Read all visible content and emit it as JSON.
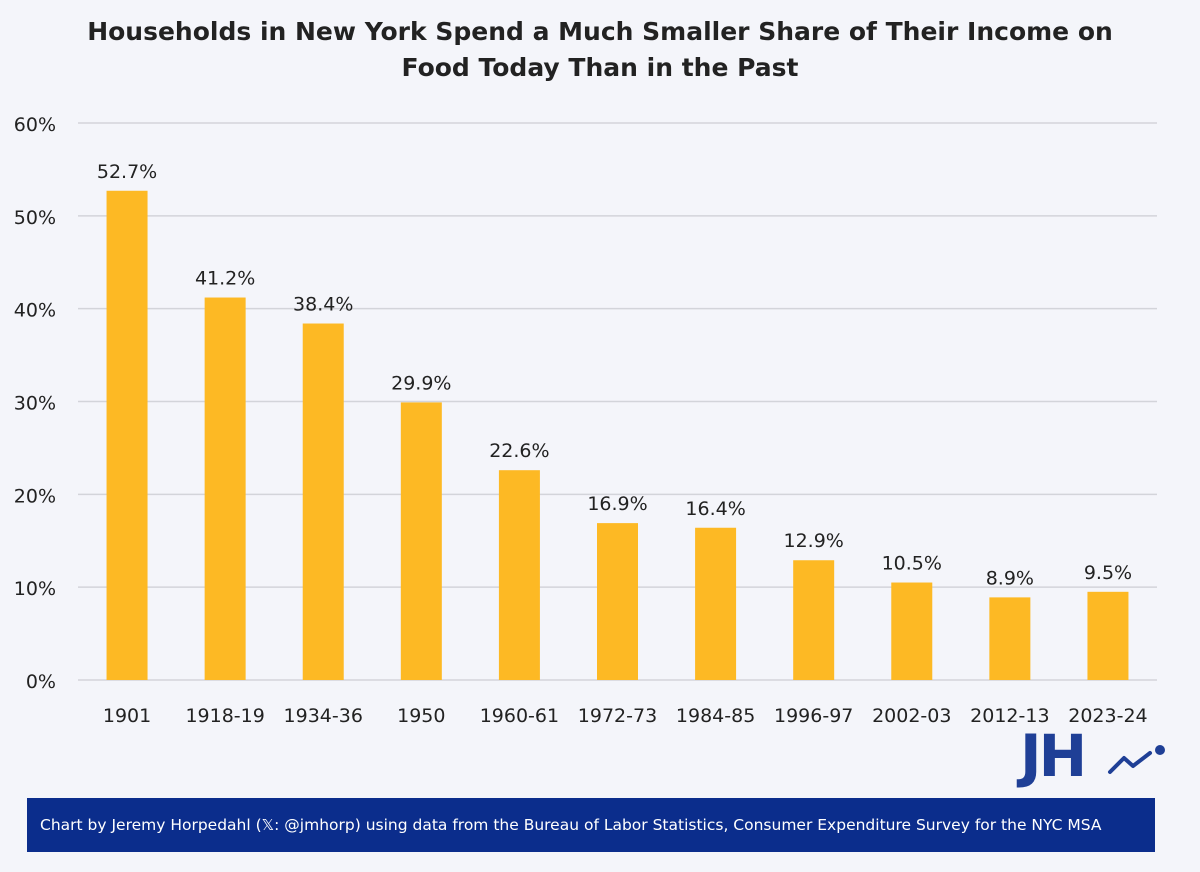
{
  "chart_data": {
    "type": "bar",
    "title_line1": "Households in New York Spend a Much Smaller Share of Their Income on",
    "title_line2": "Food Today Than in the Past",
    "categories": [
      "1901",
      "1918-19",
      "1934-36",
      "1950",
      "1960-61",
      "1972-73",
      "1984-85",
      "1996-97",
      "2002-03",
      "2012-13",
      "2023-24"
    ],
    "values": [
      52.7,
      41.2,
      38.4,
      29.9,
      22.6,
      16.9,
      16.4,
      12.9,
      10.5,
      8.9,
      9.5
    ],
    "data_labels": [
      "52.7%",
      "41.2%",
      "38.4%",
      "29.9%",
      "22.6%",
      "16.9%",
      "16.4%",
      "12.9%",
      "10.5%",
      "8.9%",
      "9.5%"
    ],
    "yticks": [
      0,
      10,
      20,
      30,
      40,
      50,
      60
    ],
    "ytick_labels": [
      "0%",
      "10%",
      "20%",
      "30%",
      "40%",
      "50%",
      "60%"
    ],
    "ylim": [
      0,
      60
    ],
    "xlabel": "",
    "ylabel": "",
    "grid": true,
    "legend": "none",
    "bar_color": "#fdb924",
    "grid_color": "#d3d4da"
  },
  "logo": {
    "text": "JH",
    "color": "#1f3f96"
  },
  "footer": {
    "text": "Chart by Jeremy Horpedahl (𝕏: @jmhorp) using data from the Bureau of Labor Statistics, Consumer Expenditure Survey for the NYC MSA",
    "background": "#0b2d8c"
  }
}
